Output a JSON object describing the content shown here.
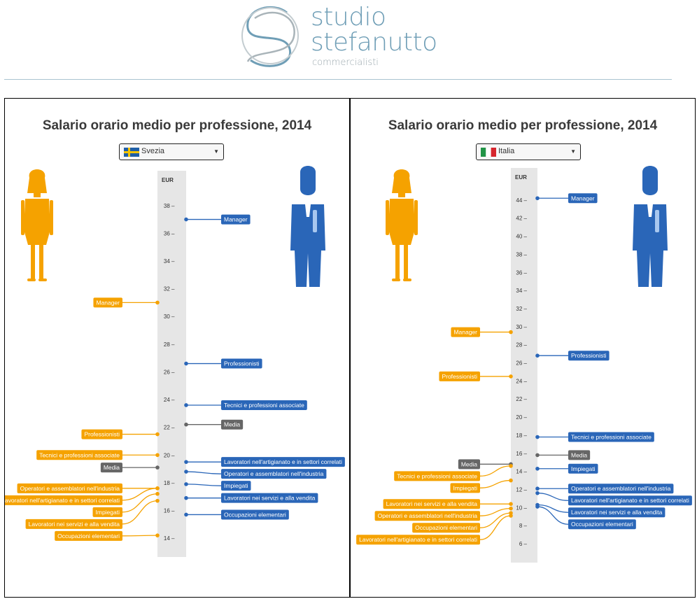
{
  "brand": {
    "line1": "studio",
    "line2": "stefanutto",
    "line3": "commercialisti"
  },
  "colors": {
    "women": "#f5a200",
    "men": "#2a66b8",
    "media": "#666666",
    "axis": "#e6e6e6",
    "brand": "#6f9eb6"
  },
  "panels": [
    {
      "title": "Salario orario medio per professione, 2014",
      "country": "Svezia",
      "flag": "sweden-flag",
      "chart_data": {
        "type": "dot-axis",
        "unit": "EUR",
        "ylim": [
          13.4,
          39.2
        ],
        "ticks": [
          14,
          16,
          18,
          20,
          22,
          24,
          26,
          28,
          30,
          32,
          34,
          36,
          38
        ],
        "series": [
          {
            "name": "women",
            "side": "left",
            "points": [
              {
                "label": "Manager",
                "value": 31.0
              },
              {
                "label": "Professionisti",
                "value": 21.5
              },
              {
                "label": "Tecnici e professioni associate",
                "value": 20.0
              },
              {
                "label": "Operatori e assemblatori nell'industria",
                "value": 17.6
              },
              {
                "label": "Lavoratori nell'artigianato e in settori correlati",
                "value": 17.6
              },
              {
                "label": "Impiegati",
                "value": 17.2
              },
              {
                "label": "Lavoratori nei servizi e alla vendita",
                "value": 16.7
              },
              {
                "label": "Occupazioni elementari",
                "value": 14.2
              }
            ]
          },
          {
            "name": "men",
            "side": "right",
            "points": [
              {
                "label": "Manager",
                "value": 37.0
              },
              {
                "label": "Professionisti",
                "value": 26.6
              },
              {
                "label": "Tecnici e professioni associate",
                "value": 23.6
              },
              {
                "label": "Lavoratori nell'artigianato e in settori correlati",
                "value": 19.5
              },
              {
                "label": "Operatori e assemblatori nell'industria",
                "value": 18.8
              },
              {
                "label": "Impiegati",
                "value": 17.9
              },
              {
                "label": "Lavoratori nei servizi e alla vendita",
                "value": 16.9
              },
              {
                "label": "Occupazioni elementari",
                "value": 15.7
              }
            ]
          },
          {
            "name": "media",
            "points": [
              {
                "label": "Media",
                "value": 19.1,
                "side": "left"
              },
              {
                "label": "Media",
                "value": 22.2,
                "side": "right"
              }
            ]
          }
        ]
      }
    },
    {
      "title": "Salario orario medio per professione, 2014",
      "country": "Italia",
      "flag": "italy-flag",
      "chart_data": {
        "type": "dot-axis",
        "unit": "EUR",
        "ylim": [
          5.0,
          46.0
        ],
        "ticks": [
          6,
          8,
          10,
          12,
          14,
          16,
          18,
          20,
          22,
          24,
          26,
          28,
          30,
          32,
          34,
          36,
          38,
          40,
          42,
          44
        ],
        "series": [
          {
            "name": "women",
            "side": "left",
            "points": [
              {
                "label": "Manager",
                "value": 29.4
              },
              {
                "label": "Professionisti",
                "value": 24.5
              },
              {
                "label": "Tecnici e professioni associate",
                "value": 14.6
              },
              {
                "label": "Impiegati",
                "value": 13.0
              },
              {
                "label": "Lavoratori nei servizi e alla vendita",
                "value": 10.4
              },
              {
                "label": "Operatori e assemblatori nell'industria",
                "value": 9.9
              },
              {
                "label": "Occupazioni elementari",
                "value": 9.4
              },
              {
                "label": "Lavoratori nell'artigianato e in settori correlati",
                "value": 9.1
              }
            ]
          },
          {
            "name": "men",
            "side": "right",
            "points": [
              {
                "label": "Manager",
                "value": 44.2
              },
              {
                "label": "Professionisti",
                "value": 26.8
              },
              {
                "label": "Tecnici e professioni associate",
                "value": 17.8
              },
              {
                "label": "Impiegati",
                "value": 14.3
              },
              {
                "label": "Operatori e assemblatori nell'industria",
                "value": 12.1
              },
              {
                "label": "Lavoratori nell'artigianato e in settori correlati",
                "value": 11.6
              },
              {
                "label": "Lavoratori nei servizi e alla vendita",
                "value": 10.3
              },
              {
                "label": "Occupazioni elementari",
                "value": 10.1
              }
            ]
          },
          {
            "name": "media",
            "points": [
              {
                "label": "Media",
                "value": 14.8,
                "side": "left"
              },
              {
                "label": "Media",
                "value": 15.8,
                "side": "right"
              }
            ]
          }
        ]
      }
    }
  ]
}
